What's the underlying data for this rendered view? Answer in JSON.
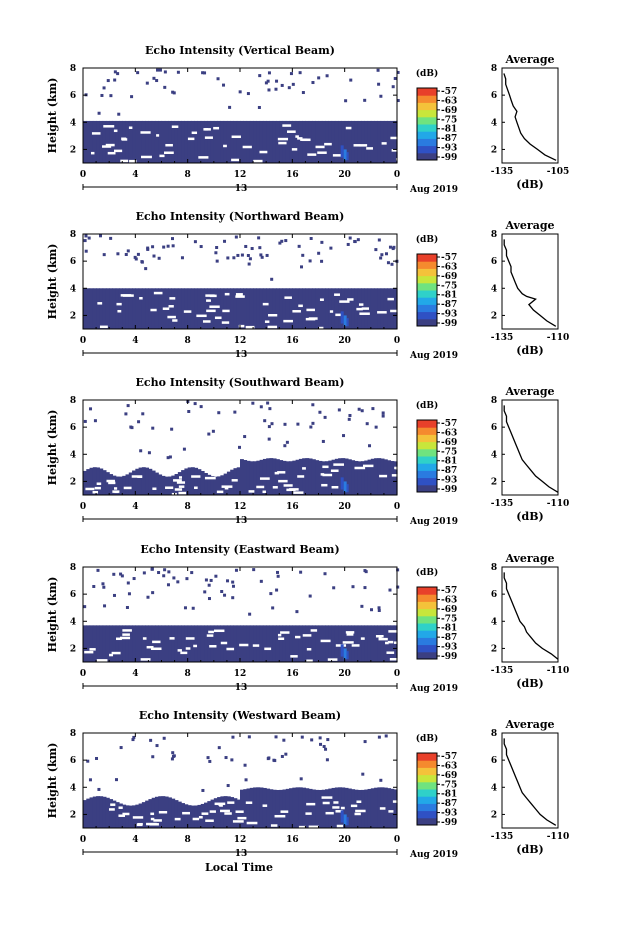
{
  "figure": {
    "xlabel": "Local Time",
    "colors": {
      "background": "#ffffff",
      "low_echo": "#3b3f82",
      "colorbar": [
        "#3b3f82",
        "#2f51c4",
        "#2a7be0",
        "#22a8e8",
        "#2fd1c9",
        "#6fe37f",
        "#c8e63b",
        "#f4c23a",
        "#f58a2e",
        "#e8402a"
      ]
    }
  },
  "chart_data": [
    {
      "type": "heatmap",
      "title": "Echo Intensity (Vertical Beam)",
      "ylabel": "Height (km)",
      "y_ticks": [
        "2",
        "4",
        "6",
        "8"
      ],
      "ylim": [
        1,
        8
      ],
      "x_ticks": [
        "0",
        "4",
        "8",
        "12",
        "16",
        "20",
        "0"
      ],
      "xlim": [
        0,
        24
      ],
      "date_label": "13",
      "date_suffix": "Aug 2019",
      "colorbar_unit": "(dB)",
      "colorbar_ticks": [
        "-57",
        "-63",
        "-69",
        "-75",
        "-81",
        "-87",
        "-93",
        "-99"
      ],
      "average_profile": {
        "title": "Average",
        "xlabel": "(dB)",
        "x_ticks": [
          "-135",
          "-105"
        ],
        "xlim": [
          -135,
          -105
        ],
        "y_ticks": [
          "2",
          "4",
          "6",
          "8"
        ],
        "ylim": [
          1,
          8
        ],
        "height": [
          1.2,
          1.6,
          2.0,
          2.4,
          2.8,
          3.2,
          3.6,
          4.0,
          4.4,
          4.8,
          5.2,
          5.6,
          6.0,
          6.4,
          6.8,
          7.2,
          7.6
        ],
        "values": [
          -106,
          -112,
          -116,
          -120,
          -123,
          -125,
          -126,
          -127,
          -128,
          -127,
          -129,
          -130,
          -131,
          -132,
          -133,
          -133,
          -134
        ]
      }
    },
    {
      "type": "heatmap",
      "title": "Echo Intensity (Northward Beam)",
      "ylabel": "Height (km)",
      "y_ticks": [
        "2",
        "4",
        "6",
        "8"
      ],
      "ylim": [
        1,
        8
      ],
      "x_ticks": [
        "0",
        "4",
        "8",
        "12",
        "16",
        "20",
        "0"
      ],
      "xlim": [
        0,
        24
      ],
      "date_label": "13",
      "date_suffix": "Aug 2019",
      "colorbar_unit": "(dB)",
      "colorbar_ticks": [
        "-57",
        "-63",
        "-69",
        "-75",
        "-81",
        "-87",
        "-93",
        "-99"
      ],
      "average_profile": {
        "title": "Average",
        "xlabel": "(dB)",
        "x_ticks": [
          "-135",
          "-110"
        ],
        "xlim": [
          -135,
          -110
        ],
        "y_ticks": [
          "2",
          "4",
          "6",
          "8"
        ],
        "ylim": [
          1,
          8
        ],
        "height": [
          1.2,
          1.6,
          2.0,
          2.4,
          2.8,
          3.2,
          3.4,
          3.6,
          4.0,
          4.4,
          4.8,
          5.2,
          5.6,
          6.0,
          6.4,
          6.8,
          7.2,
          7.6
        ],
        "values": [
          -111,
          -115,
          -118,
          -121,
          -123,
          -120,
          -124,
          -126,
          -128,
          -129,
          -130,
          -131,
          -131,
          -132,
          -133,
          -133,
          -134,
          -134
        ]
      }
    },
    {
      "type": "heatmap",
      "title": "Echo Intensity (Southward Beam)",
      "ylabel": "Height (km)",
      "y_ticks": [
        "2",
        "4",
        "6",
        "8"
      ],
      "ylim": [
        1,
        8
      ],
      "x_ticks": [
        "0",
        "4",
        "8",
        "12",
        "16",
        "20",
        "0"
      ],
      "xlim": [
        0,
        24
      ],
      "date_label": "13",
      "date_suffix": "Aug 2019",
      "colorbar_unit": "(dB)",
      "colorbar_ticks": [
        "-57",
        "-63",
        "-69",
        "-75",
        "-81",
        "-87",
        "-93",
        "-99"
      ],
      "average_profile": {
        "title": "Average",
        "xlabel": "(dB)",
        "x_ticks": [
          "-135",
          "-110"
        ],
        "xlim": [
          -135,
          -110
        ],
        "y_ticks": [
          "2",
          "4",
          "6",
          "8"
        ],
        "ylim": [
          1,
          8
        ],
        "height": [
          1.2,
          1.6,
          2.0,
          2.4,
          2.8,
          3.2,
          3.6,
          4.0,
          4.4,
          4.8,
          5.2,
          5.6,
          6.0,
          6.4,
          6.8,
          7.2,
          7.6
        ],
        "values": [
          -110,
          -114,
          -117,
          -120,
          -122,
          -124,
          -126,
          -127,
          -128,
          -129,
          -130,
          -131,
          -132,
          -133,
          -133,
          -134,
          -134
        ]
      }
    },
    {
      "type": "heatmap",
      "title": "Echo Intensity (Eastward Beam)",
      "ylabel": "Height (km)",
      "y_ticks": [
        "2",
        "4",
        "6",
        "8"
      ],
      "ylim": [
        1,
        8
      ],
      "x_ticks": [
        "0",
        "4",
        "8",
        "12",
        "16",
        "20",
        "0"
      ],
      "xlim": [
        0,
        24
      ],
      "date_label": "13",
      "date_suffix": "Aug 2019",
      "colorbar_unit": "(dB)",
      "colorbar_ticks": [
        "-57",
        "-63",
        "-69",
        "-75",
        "-81",
        "-87",
        "-93",
        "-99"
      ],
      "average_profile": {
        "title": "Average",
        "xlabel": "(dB)",
        "x_ticks": [
          "-135",
          "-110"
        ],
        "xlim": [
          -135,
          -110
        ],
        "y_ticks": [
          "2",
          "4",
          "6",
          "8"
        ],
        "ylim": [
          1,
          8
        ],
        "height": [
          1.2,
          1.6,
          2.0,
          2.4,
          2.8,
          3.2,
          3.6,
          4.0,
          4.4,
          4.8,
          5.2,
          5.6,
          6.0,
          6.4,
          6.8,
          7.2,
          7.6
        ],
        "values": [
          -110,
          -113,
          -117,
          -120,
          -122,
          -124,
          -125,
          -127,
          -128,
          -129,
          -130,
          -131,
          -132,
          -133,
          -133,
          -134,
          -134
        ]
      }
    },
    {
      "type": "heatmap",
      "title": "Echo Intensity (Westward Beam)",
      "ylabel": "Height (km)",
      "y_ticks": [
        "2",
        "4",
        "6",
        "8"
      ],
      "ylim": [
        1,
        8
      ],
      "x_ticks": [
        "0",
        "4",
        "8",
        "12",
        "16",
        "20",
        "0"
      ],
      "xlim": [
        0,
        24
      ],
      "date_label": "13",
      "date_suffix": "Aug 2019",
      "colorbar_unit": "(dB)",
      "colorbar_ticks": [
        "-57",
        "-63",
        "-69",
        "-75",
        "-81",
        "-87",
        "-93",
        "-99"
      ],
      "average_profile": {
        "title": "Average",
        "xlabel": "(dB)",
        "x_ticks": [
          "-135",
          "-110"
        ],
        "xlim": [
          -135,
          -110
        ],
        "y_ticks": [
          "2",
          "4",
          "6",
          "8"
        ],
        "ylim": [
          1,
          8
        ],
        "height": [
          1.2,
          1.6,
          2.0,
          2.4,
          2.8,
          3.2,
          3.6,
          4.0,
          4.4,
          4.8,
          5.2,
          5.6,
          6.0,
          6.4,
          6.8,
          7.2,
          7.6
        ],
        "values": [
          -111,
          -115,
          -118,
          -120,
          -122,
          -124,
          -126,
          -127,
          -128,
          -129,
          -130,
          -131,
          -132,
          -133,
          -133,
          -134,
          -134
        ]
      }
    }
  ]
}
